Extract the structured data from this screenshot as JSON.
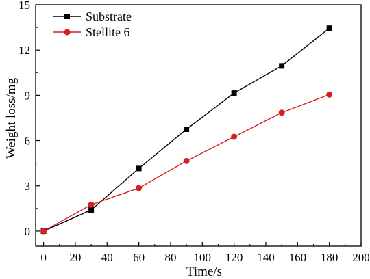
{
  "chart_data": {
    "type": "line",
    "xlabel": "Time/s",
    "ylabel": "Weight loss/mg",
    "xlim": [
      -5,
      200
    ],
    "ylim": [
      -1,
      15
    ],
    "xticks": [
      0,
      20,
      40,
      60,
      80,
      100,
      120,
      140,
      160,
      180,
      200
    ],
    "yticks": [
      0,
      3,
      6,
      9,
      12,
      15
    ],
    "legend_position": "top-left",
    "grid": false,
    "series": [
      {
        "name": "Substrate",
        "color": "#000000",
        "marker": "square",
        "x": [
          0,
          30,
          60,
          90,
          120,
          150,
          180
        ],
        "y": [
          0,
          1.4,
          4.15,
          6.75,
          9.15,
          10.95,
          13.45
        ]
      },
      {
        "name": "Stellite 6",
        "color": "#d42020",
        "marker": "circle",
        "x": [
          0,
          30,
          60,
          90,
          120,
          150,
          180
        ],
        "y": [
          0,
          1.75,
          2.85,
          4.65,
          6.25,
          7.85,
          9.05
        ]
      }
    ]
  }
}
